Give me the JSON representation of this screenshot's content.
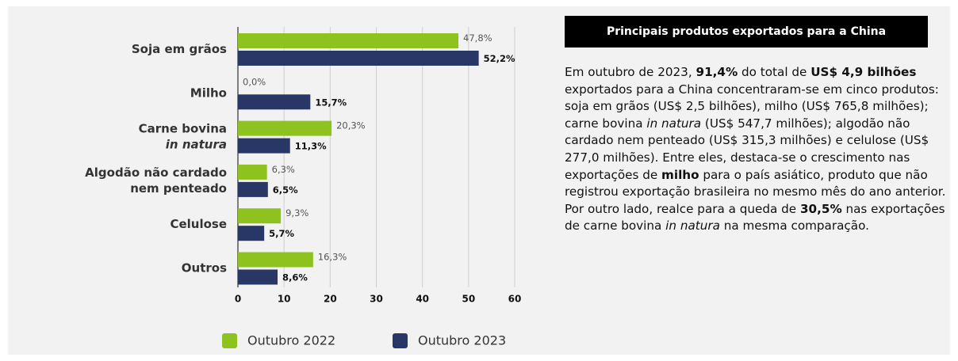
{
  "chart_data": {
    "type": "barh",
    "categories": [
      "Soja em grãos",
      "Milho",
      [
        "Carne bovina",
        "in natura"
      ],
      [
        "Algodão não cardado",
        "nem penteado"
      ],
      "Celulose",
      "Outros"
    ],
    "series": [
      {
        "name": "Outubro 2022",
        "color": "#8dc21f",
        "values": [
          47.8,
          0.0,
          20.3,
          6.3,
          9.3,
          16.3
        ],
        "value_labels": [
          "47,8%",
          "0,0%",
          "20,3%",
          "6,3%",
          "9,3%",
          "16,3%"
        ]
      },
      {
        "name": "Outubro 2023",
        "color": "#283766",
        "values": [
          52.2,
          15.7,
          11.3,
          6.5,
          5.7,
          8.6
        ],
        "value_labels": [
          "52,2%",
          "15,7%",
          "11,3%",
          "6,5%",
          "5,7%",
          "8,6%"
        ]
      }
    ],
    "xlim": [
      0,
      60
    ],
    "xticks": [
      0,
      10,
      20,
      30,
      40,
      50,
      60
    ],
    "grid": true
  },
  "panel": {
    "title": "Principais produtos exportados para a China",
    "paragraph": [
      {
        "text": "Em outubro de 2023, "
      },
      {
        "text": "91,4%",
        "bold": true
      },
      {
        "text": " do total de "
      },
      {
        "text": "US$ 4,9 bilhões",
        "bold": true
      },
      {
        "text": " exportados para a China concentraram-se em cinco produtos: soja em grãos (US$ 2,5 bilhões), milho (US$ 765,8 milhões); carne bovina "
      },
      {
        "text": "in natura",
        "italic": true
      },
      {
        "text": " (US$ 547,7 milhões); algodão não cardado nem penteado (US$ 315,3 milhões) e celulose (US$ 277,0 milhões). Entre eles, destaca-se o crescimento nas exportações de "
      },
      {
        "text": "milho",
        "bold": true
      },
      {
        "text": " para o país asiático, produto que não registrou exportação brasileira no mesmo mês do ano anterior. Por outro lado, realce para a queda de "
      },
      {
        "text": "30,5%",
        "bold": true
      },
      {
        "text": " nas exportações de carne bovina "
      },
      {
        "text": "in natura",
        "italic": true
      },
      {
        "text": " na mesma comparação."
      }
    ]
  }
}
